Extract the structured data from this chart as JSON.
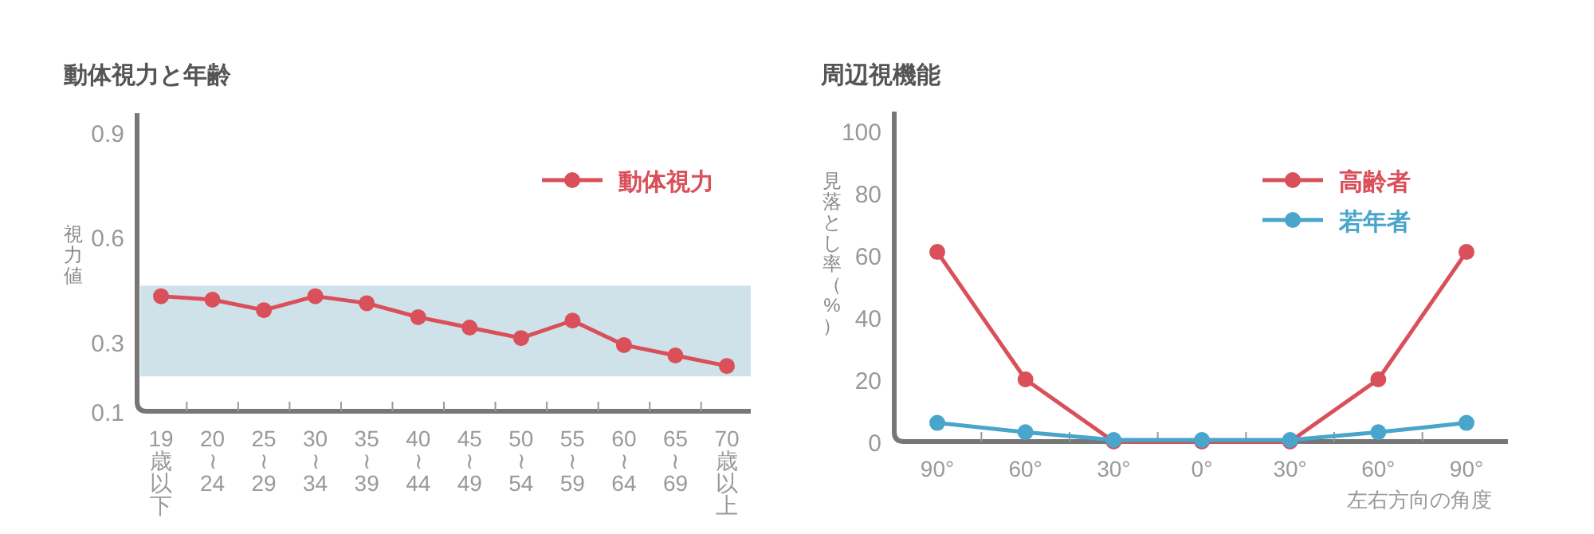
{
  "chart_data": [
    {
      "type": "line",
      "title": "動体視力と年齢",
      "ylabel": "視力値",
      "categories": [
        "19歳以下",
        "20≀24",
        "25≀29",
        "30≀34",
        "35≀39",
        "40≀44",
        "45≀49",
        "50≀54",
        "55≀59",
        "60≀64",
        "65≀69",
        "70歳以上"
      ],
      "series": [
        {
          "name": "動体視力",
          "color": "#d9505a",
          "values": [
            0.43,
            0.42,
            0.39,
            0.43,
            0.41,
            0.37,
            0.34,
            0.31,
            0.36,
            0.29,
            0.26,
            0.23
          ]
        }
      ],
      "ylim": [
        0.1,
        0.9
      ],
      "yticks": [
        0.1,
        0.3,
        0.6,
        0.9
      ],
      "bands": [
        {
          "axis": "y",
          "from": 0.2,
          "to": 0.46,
          "color": "#cfe2ea"
        }
      ],
      "marker": "circle",
      "legend": "top right",
      "grid": false
    },
    {
      "type": "line",
      "title": "周辺視機能",
      "ylabel": "見落とし率（%）",
      "xlabel": "左右方向の角度",
      "categories": [
        "90°",
        "60°",
        "30°",
        "0°",
        "30°",
        "60°",
        "90°"
      ],
      "series": [
        {
          "name": "高齢者",
          "color": "#d9505a",
          "values": [
            61,
            20,
            0,
            0,
            0,
            20,
            61
          ]
        },
        {
          "name": "若年者",
          "color": "#4aa5cc",
          "values": [
            6,
            3,
            0.5,
            0.5,
            0.5,
            3,
            6
          ]
        }
      ],
      "ylim": [
        0,
        100
      ],
      "yticks": [
        0,
        20,
        40,
        60,
        80,
        100
      ],
      "marker": "circle",
      "legend": "top right",
      "grid": false
    }
  ]
}
